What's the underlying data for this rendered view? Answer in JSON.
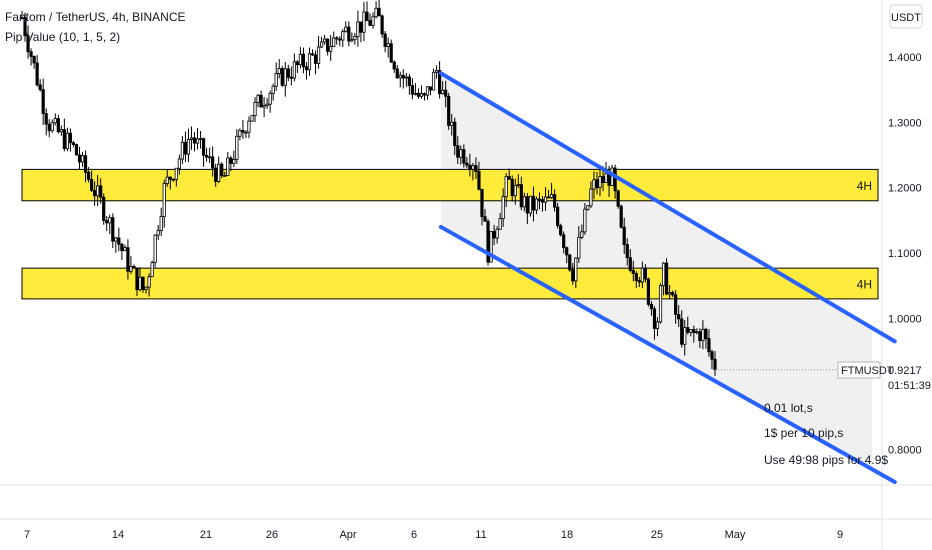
{
  "header": {
    "symbol_line": "Fantom / TetherUS, 4h, BINANCE",
    "indicator_line": "Pip Value (10, 1, 5, 2)"
  },
  "currency_button": "USDT",
  "price_tag": {
    "symbol": "FTMUSDT",
    "price": "0.9217",
    "countdown": "01:51:39",
    "value": 0.9217
  },
  "zones": [
    {
      "label": "4H",
      "low": 1.18,
      "high": 1.228,
      "color": "#FFEB3B"
    },
    {
      "label": "4H",
      "low": 1.03,
      "high": 1.077,
      "color": "#FFEB3B"
    }
  ],
  "annotations": [
    "0.01 lot,s",
    "1$ per 10 pip,s",
    "Use 49:98 pips for 4.9$"
  ],
  "colors": {
    "channel": "#2962FF",
    "zone": "#FFEB3B",
    "shade": "#F0F0F0",
    "candle": "#000000"
  },
  "chart_data": {
    "type": "candlestick",
    "symbol": "FTMUSDT",
    "interval": "4h",
    "exchange": "BINANCE",
    "x_ticks": [
      "7",
      "14",
      "21",
      "26",
      "Apr",
      "6",
      "11",
      "18",
      "25",
      "May",
      "9"
    ],
    "y_ticks": [
      "1.4000",
      "1.3000",
      "1.2000",
      "1.1000",
      "1.0000",
      "0.8000"
    ],
    "ylim": [
      0.75,
      1.47
    ],
    "last_price": 0.9217,
    "path_points": [
      {
        "t": 0,
        "v": 1.46
      },
      {
        "t": 0.04,
        "v": 1.3
      },
      {
        "t": 0.08,
        "v": 1.26
      },
      {
        "t": 0.12,
        "v": 1.18
      },
      {
        "t": 0.17,
        "v": 1.07
      },
      {
        "t": 0.19,
        "v": 1.04
      },
      {
        "t": 0.22,
        "v": 1.2
      },
      {
        "t": 0.26,
        "v": 1.28
      },
      {
        "t": 0.31,
        "v": 1.21
      },
      {
        "t": 0.35,
        "v": 1.31
      },
      {
        "t": 0.4,
        "v": 1.37
      },
      {
        "t": 0.45,
        "v": 1.4
      },
      {
        "t": 0.5,
        "v": 1.44
      },
      {
        "t": 0.55,
        "v": 1.46
      },
      {
        "t": 0.58,
        "v": 1.38
      },
      {
        "t": 0.62,
        "v": 1.33
      },
      {
        "t": 0.64,
        "v": 1.38
      },
      {
        "t": 0.67,
        "v": 1.26
      },
      {
        "t": 0.7,
        "v": 1.24
      },
      {
        "t": 0.72,
        "v": 1.1
      },
      {
        "t": 0.75,
        "v": 1.21
      },
      {
        "t": 0.78,
        "v": 1.17
      },
      {
        "t": 0.82,
        "v": 1.18
      },
      {
        "t": 0.85,
        "v": 1.07
      },
      {
        "t": 0.88,
        "v": 1.2
      },
      {
        "t": 0.91,
        "v": 1.22
      },
      {
        "t": 0.93,
        "v": 1.1
      },
      {
        "t": 0.96,
        "v": 1.06
      },
      {
        "t": 0.98,
        "v": 0.99
      },
      {
        "t": 0.99,
        "v": 1.07
      },
      {
        "t": 1.02,
        "v": 0.97
      },
      {
        "t": 1.05,
        "v": 0.98
      },
      {
        "t": 1.07,
        "v": 0.9217
      }
    ],
    "channel": {
      "upper": [
        {
          "x": "2022-04-07",
          "y": 1.375
        },
        {
          "x": "2022-05-11",
          "y": 0.965
        }
      ],
      "lower": [
        {
          "x": "2022-04-07",
          "y": 1.14
        },
        {
          "x": "2022-05-11",
          "y": 0.75
        }
      ]
    }
  }
}
